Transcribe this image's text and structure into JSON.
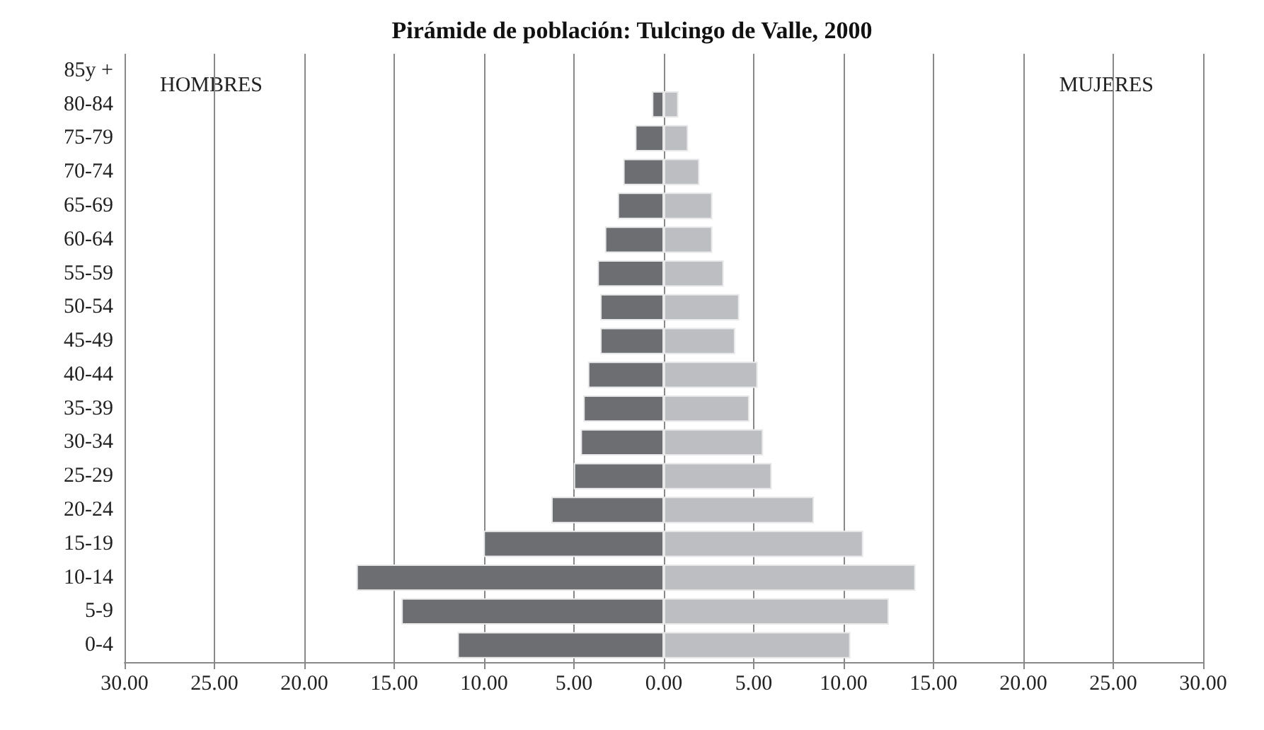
{
  "chart_data": {
    "type": "bar",
    "orientation": "horizontal",
    "title": "Pirámide de población: Tulcingo de Valle, 2000",
    "categories": [
      "85y +",
      "80-84",
      "75-79",
      "70-74",
      "65-69",
      "60-64",
      "55-59",
      "50-54",
      "45-49",
      "40-44",
      "35-39",
      "30-34",
      "25-29",
      "20-24",
      "15-19",
      "10-14",
      "5-9",
      "0-4"
    ],
    "series": [
      {
        "color": "#6d6e72",
        "values": [
          null,
          -0.66,
          -1.6,
          -2.26,
          -2.57,
          -3.28,
          -3.69,
          -3.54,
          -3.54,
          -4.22,
          -4.48,
          -4.63,
          -5.01,
          -6.26,
          -10.03,
          -17.1,
          -14.6,
          -11.48
        ]
      },
      {
        "color": "#bdbec2",
        "values": [
          null,
          0.81,
          1.35,
          1.98,
          2.7,
          2.7,
          3.33,
          4.2,
          3.97,
          5.22,
          4.76,
          5.52,
          6.0,
          8.35,
          11.09,
          14.0,
          12.52,
          10.38
        ]
      }
    ],
    "xlim": [
      -30,
      30
    ],
    "xticks": [
      {
        "value": -30,
        "label": "30.00"
      },
      {
        "value": -25,
        "label": "25.00"
      },
      {
        "value": -20,
        "label": "20.00"
      },
      {
        "value": -15,
        "label": "15.00"
      },
      {
        "value": -10,
        "label": "10.00"
      },
      {
        "value": -5,
        "label": "5.00"
      },
      {
        "value": 0,
        "label": "0.00"
      },
      {
        "value": 5,
        "label": "5.00"
      },
      {
        "value": 10,
        "label": "10.00"
      },
      {
        "value": 15,
        "label": "15.00"
      },
      {
        "value": 20,
        "label": "20.00"
      },
      {
        "value": 25,
        "label": "25.00"
      },
      {
        "value": 30,
        "label": "30.00"
      }
    ],
    "annotations": [
      "HOMBRES",
      "MUJERES"
    ],
    "stacked": true,
    "grid": "x"
  }
}
